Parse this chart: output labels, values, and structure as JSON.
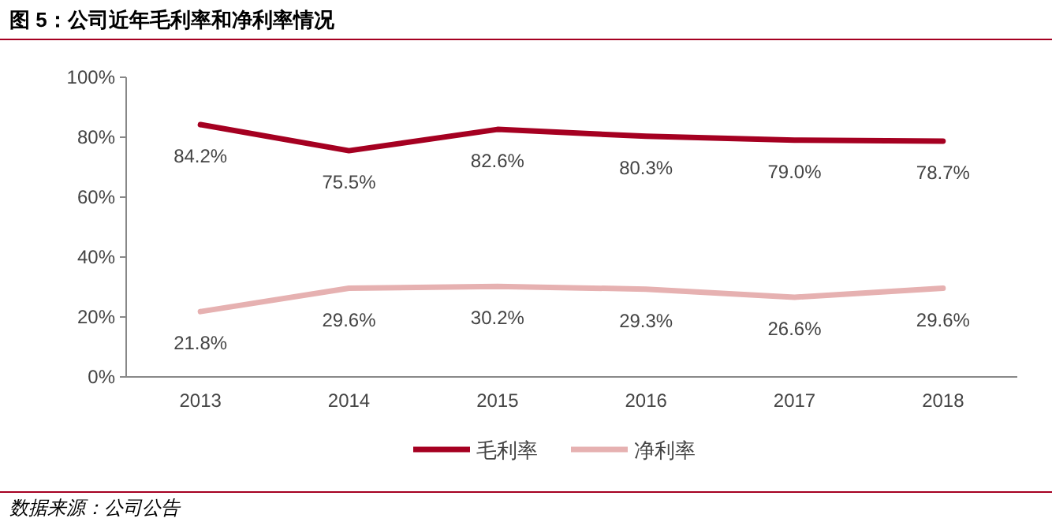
{
  "chart_data": {
    "type": "line",
    "title": "图 5：公司近年毛利率和净利率情况",
    "annotations": [
      "数据来源：公司公告"
    ],
    "categories": [
      "2013",
      "2014",
      "2015",
      "2016",
      "2017",
      "2018"
    ],
    "series": [
      {
        "name": "毛利率",
        "color": "#a50021",
        "values": [
          84.2,
          75.5,
          82.6,
          80.3,
          79.0,
          78.7
        ],
        "value_labels": [
          "84.2%",
          "75.5%",
          "82.6%",
          "80.3%",
          "79.0%",
          "78.7%"
        ]
      },
      {
        "name": "净利率",
        "color": "#e6b1b1",
        "values": [
          21.8,
          29.6,
          30.2,
          29.3,
          26.6,
          29.6
        ],
        "value_labels": [
          "21.8%",
          "29.6%",
          "30.2%",
          "29.3%",
          "26.6%",
          "29.6%"
        ]
      }
    ],
    "ylim": [
      0,
      100
    ],
    "yticks": [
      {
        "value": 0,
        "label": "0%"
      },
      {
        "value": 20,
        "label": "20%"
      },
      {
        "value": 40,
        "label": "40%"
      },
      {
        "value": 60,
        "label": "60%"
      },
      {
        "value": 80,
        "label": "80%"
      },
      {
        "value": 100,
        "label": "100%"
      }
    ],
    "legend": "bottom",
    "grid": false
  }
}
